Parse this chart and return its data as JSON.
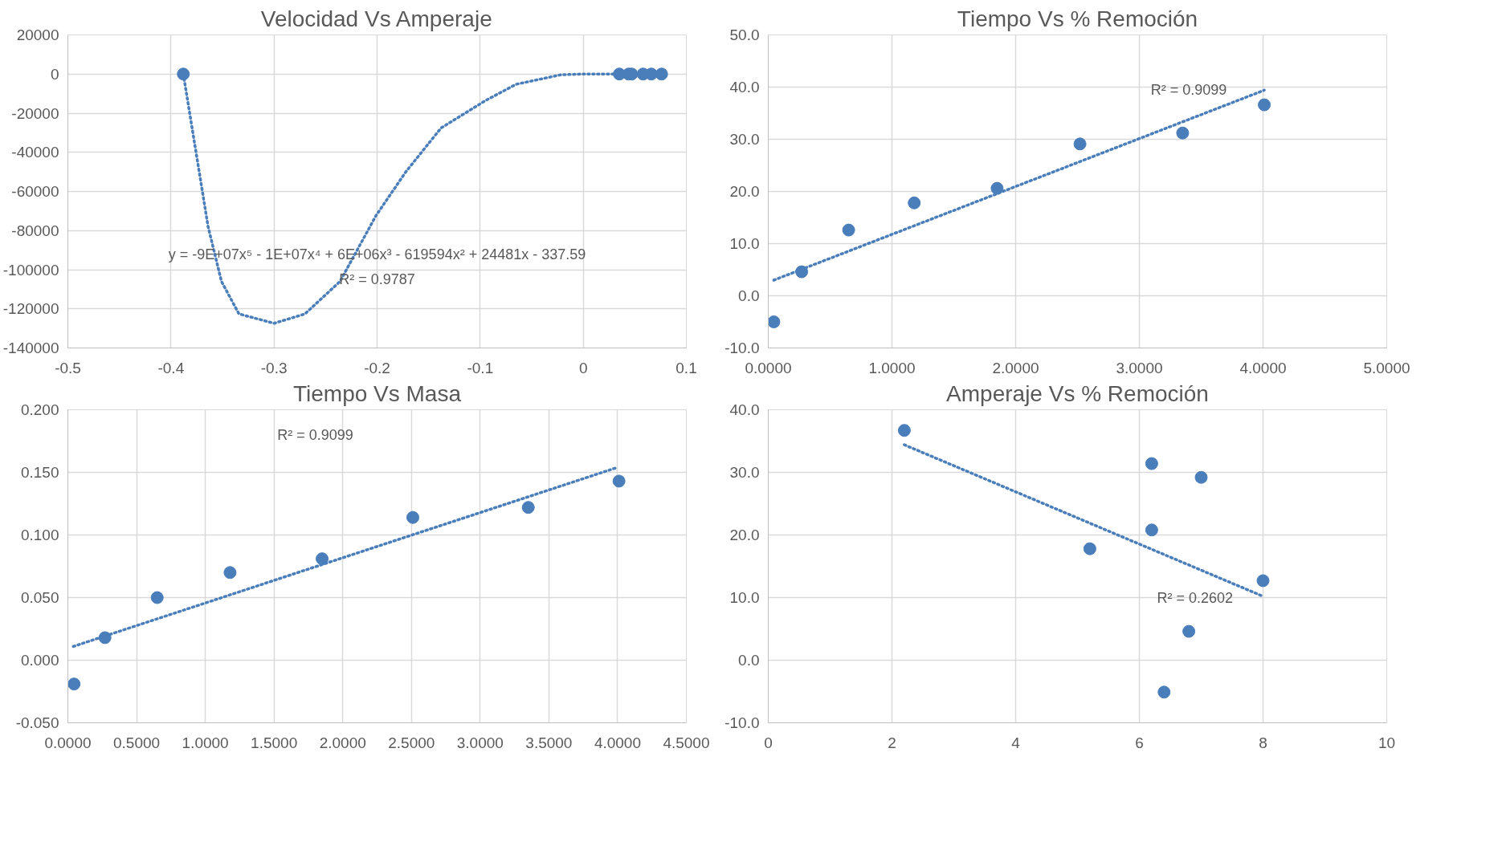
{
  "chart_data": [
    {
      "type": "scatter",
      "title": "Velocidad Vs Amperaje",
      "grid": true,
      "xlim": [
        -0.5,
        0.1
      ],
      "ylim": [
        -140000,
        20000
      ],
      "xticks": [
        -0.5,
        -0.4,
        -0.3,
        -0.2,
        -0.1,
        0,
        0.1
      ],
      "yticks": [
        -140000,
        -120000,
        -100000,
        -80000,
        -60000,
        -40000,
        -20000,
        0,
        20000
      ],
      "series": [
        {
          "type": "scatter",
          "marker": "circle",
          "color": "#4a7ebb",
          "x": [
            -0.388,
            0.035,
            0.044,
            0.047,
            0.058,
            0.066,
            0.076
          ],
          "values": [
            0,
            0,
            0,
            0,
            0,
            0,
            0
          ]
        },
        {
          "type": "line",
          "marker": "none",
          "line_style": "dotted",
          "color": "#4a7ebb",
          "x": [
            -0.388,
            -0.376,
            -0.364,
            -0.351,
            -0.334,
            -0.3,
            -0.27,
            -0.236,
            -0.201,
            -0.172,
            -0.138,
            -0.095,
            -0.065,
            -0.022,
            -0.001,
            0.02,
            0.076
          ],
          "values": [
            0,
            -38900,
            -77900,
            -106000,
            -122600,
            -127400,
            -122600,
            -106000,
            -72300,
            -49900,
            -27600,
            -13600,
            -5200,
            -400,
            0,
            0,
            0
          ]
        }
      ],
      "annotations": [
        "y = -9E+07x⁵ - 1E+07x⁴ + 6E+06x³ - 619594x² + 24481x - 337.59",
        "R² = 0.9787"
      ]
    },
    {
      "type": "scatter",
      "title": "Tiempo Vs % Remoción",
      "grid": true,
      "xlim": [
        0,
        5
      ],
      "ylim": [
        -10,
        50
      ],
      "xticks": [
        {
          "value": 0,
          "label": "0.0000"
        },
        {
          "value": 1,
          "label": "1.0000"
        },
        {
          "value": 2,
          "label": "2.0000"
        },
        {
          "value": 3,
          "label": "3.0000"
        },
        {
          "value": 4,
          "label": "4.0000"
        },
        {
          "value": 5,
          "label": "5.0000"
        }
      ],
      "yticks": [
        {
          "value": -10,
          "label": "-10.0"
        },
        {
          "value": 0,
          "label": "0.0"
        },
        {
          "value": 10,
          "label": "10.0"
        },
        {
          "value": 20,
          "label": "20.0"
        },
        {
          "value": 30,
          "label": "30.0"
        },
        {
          "value": 40,
          "label": "40.0"
        },
        {
          "value": 50,
          "label": "50.0"
        }
      ],
      "series": [
        {
          "type": "scatter",
          "marker": "circle",
          "color": "#4a7ebb",
          "x": [
            0.045,
            0.27,
            0.65,
            1.18,
            1.85,
            2.52,
            3.35,
            4.01
          ],
          "values": [
            -5.0,
            4.6,
            12.6,
            17.8,
            20.6,
            29.1,
            31.2,
            36.6
          ]
        },
        {
          "type": "line",
          "marker": "none",
          "line_style": "dotted",
          "color": "#4a7ebb",
          "x": [
            0.045,
            4.01
          ],
          "values": [
            3.0,
            39.4
          ]
        }
      ],
      "annotations": [
        "R² = 0.9099"
      ]
    },
    {
      "type": "scatter",
      "title": "Tiempo Vs Masa",
      "grid": true,
      "xlim": [
        0,
        4.5
      ],
      "ylim": [
        -0.05,
        0.2
      ],
      "xticks": [
        {
          "value": 0,
          "label": "0.0000"
        },
        {
          "value": 0.5,
          "label": "0.5000"
        },
        {
          "value": 1,
          "label": "1.0000"
        },
        {
          "value": 1.5,
          "label": "1.5000"
        },
        {
          "value": 2,
          "label": "2.0000"
        },
        {
          "value": 2.5,
          "label": "2.5000"
        },
        {
          "value": 3,
          "label": "3.0000"
        },
        {
          "value": 3.5,
          "label": "3.5000"
        },
        {
          "value": 4,
          "label": "4.0000"
        },
        {
          "value": 4.5,
          "label": "4.5000"
        }
      ],
      "yticks": [
        {
          "value": -0.05,
          "label": "-0.050"
        },
        {
          "value": 0,
          "label": "0.000"
        },
        {
          "value": 0.05,
          "label": "0.050"
        },
        {
          "value": 0.1,
          "label": "0.100"
        },
        {
          "value": 0.15,
          "label": "0.150"
        },
        {
          "value": 0.2,
          "label": "0.200"
        }
      ],
      "series": [
        {
          "type": "scatter",
          "marker": "circle",
          "color": "#4a7ebb",
          "x": [
            0.045,
            0.27,
            0.65,
            1.18,
            1.85,
            2.51,
            3.35,
            4.01
          ],
          "values": [
            -0.019,
            0.018,
            0.05,
            0.07,
            0.081,
            0.114,
            0.122,
            0.143
          ]
        },
        {
          "type": "line",
          "marker": "none",
          "line_style": "dotted",
          "color": "#4a7ebb",
          "x": [
            0.04,
            4.0
          ],
          "values": [
            0.011,
            0.154
          ]
        }
      ],
      "annotations": [
        "R² = 0.9099"
      ]
    },
    {
      "type": "scatter",
      "title": "Amperaje Vs % Remoción",
      "grid": true,
      "xlim": [
        0,
        10
      ],
      "ylim": [
        -10,
        40
      ],
      "xticks": [
        0,
        2,
        4,
        6,
        8,
        10
      ],
      "yticks": [
        {
          "value": -10,
          "label": "-10.0"
        },
        {
          "value": 0,
          "label": "0.0"
        },
        {
          "value": 10,
          "label": "10.0"
        },
        {
          "value": 20,
          "label": "20.0"
        },
        {
          "value": 30,
          "label": "30.0"
        },
        {
          "value": 40,
          "label": "40.0"
        }
      ],
      "series": [
        {
          "type": "scatter",
          "marker": "circle",
          "color": "#4a7ebb",
          "x": [
            2.2,
            6.2,
            7.0,
            6.2,
            5.2,
            8.0,
            6.8,
            6.4
          ],
          "values": [
            36.7,
            31.4,
            29.2,
            20.8,
            17.8,
            12.7,
            4.6,
            -5.1
          ]
        },
        {
          "type": "line",
          "marker": "none",
          "line_style": "dotted",
          "color": "#4a7ebb",
          "x": [
            2.2,
            8.0
          ],
          "values": [
            34.4,
            10.2
          ]
        }
      ],
      "annotations": [
        "R² = 0.2602"
      ]
    }
  ]
}
